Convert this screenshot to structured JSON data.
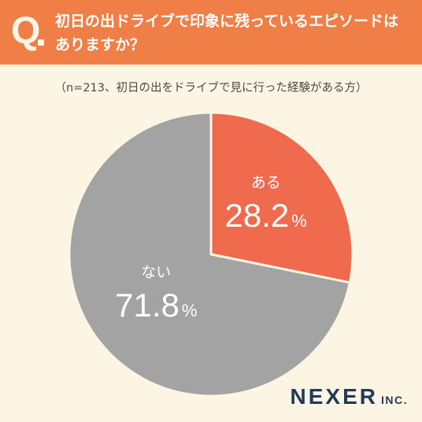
{
  "header": {
    "q_letter": "Q",
    "question": "初日の出ドライブで印象に残っているエピソードは\nありますか？"
  },
  "note": "（n=213、初日の出をドライブで見に行った経験がある方）",
  "chart_data": {
    "type": "pie",
    "title": "初日の出ドライブで印象に残っているエピソードはありますか？",
    "n": 213,
    "slices": [
      {
        "label": "ある",
        "value": 28.2,
        "unit": "%",
        "color": "#f06a4e"
      },
      {
        "label": "ない",
        "value": 71.8,
        "unit": "%",
        "color": "#a3a3a3"
      }
    ],
    "start_angle_deg": 0,
    "direction": "clockwise",
    "slice_border_color": "#fdf5e4"
  },
  "brand": {
    "main": "NEXER",
    "sub": "INC."
  }
}
